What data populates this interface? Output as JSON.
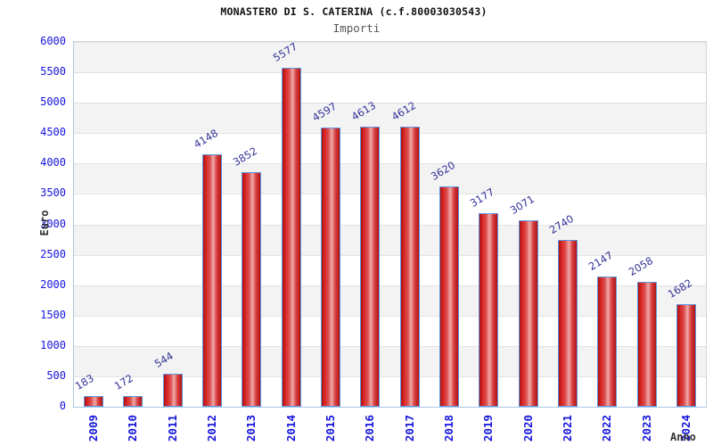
{
  "header": {
    "title": "MONASTERO DI S. CATERINA (c.f.80003030543)",
    "subtitle": "Importi"
  },
  "chart_data": {
    "type": "bar",
    "title": "MONASTERO DI S. CATERINA (c.f.80003030543)",
    "subtitle": "Importi",
    "xlabel": "Anno",
    "ylabel": "Euro",
    "categories": [
      "2009",
      "2010",
      "2011",
      "2012",
      "2013",
      "2014",
      "2015",
      "2016",
      "2017",
      "2018",
      "2019",
      "2020",
      "2021",
      "2022",
      "2023",
      "2024"
    ],
    "values": [
      183,
      172,
      544,
      4148,
      3852,
      5577,
      4597,
      4613,
      4612,
      3620,
      3177,
      3071,
      2740,
      2147,
      2058,
      1682
    ],
    "ylim": [
      0,
      6000
    ],
    "ytick_step": 500,
    "y_tick_labels": [
      "0",
      "500",
      "1000",
      "1500",
      "2000",
      "2500",
      "3000",
      "3500",
      "4000",
      "4500",
      "5000",
      "5500",
      "6000"
    ],
    "grid": "horizontal-alternating-bands",
    "legend": "none",
    "colors": {
      "bar_edge": "#5e97e0",
      "bar_dark": "#a81111",
      "bar_light": "#efaaaa",
      "tick_label": "#1414dd",
      "value_label": "#333399",
      "band_gray": "#f3f3f3",
      "band_white": "#ffffff",
      "axis_title": "#333333",
      "subtitle_color": "#555555"
    }
  }
}
